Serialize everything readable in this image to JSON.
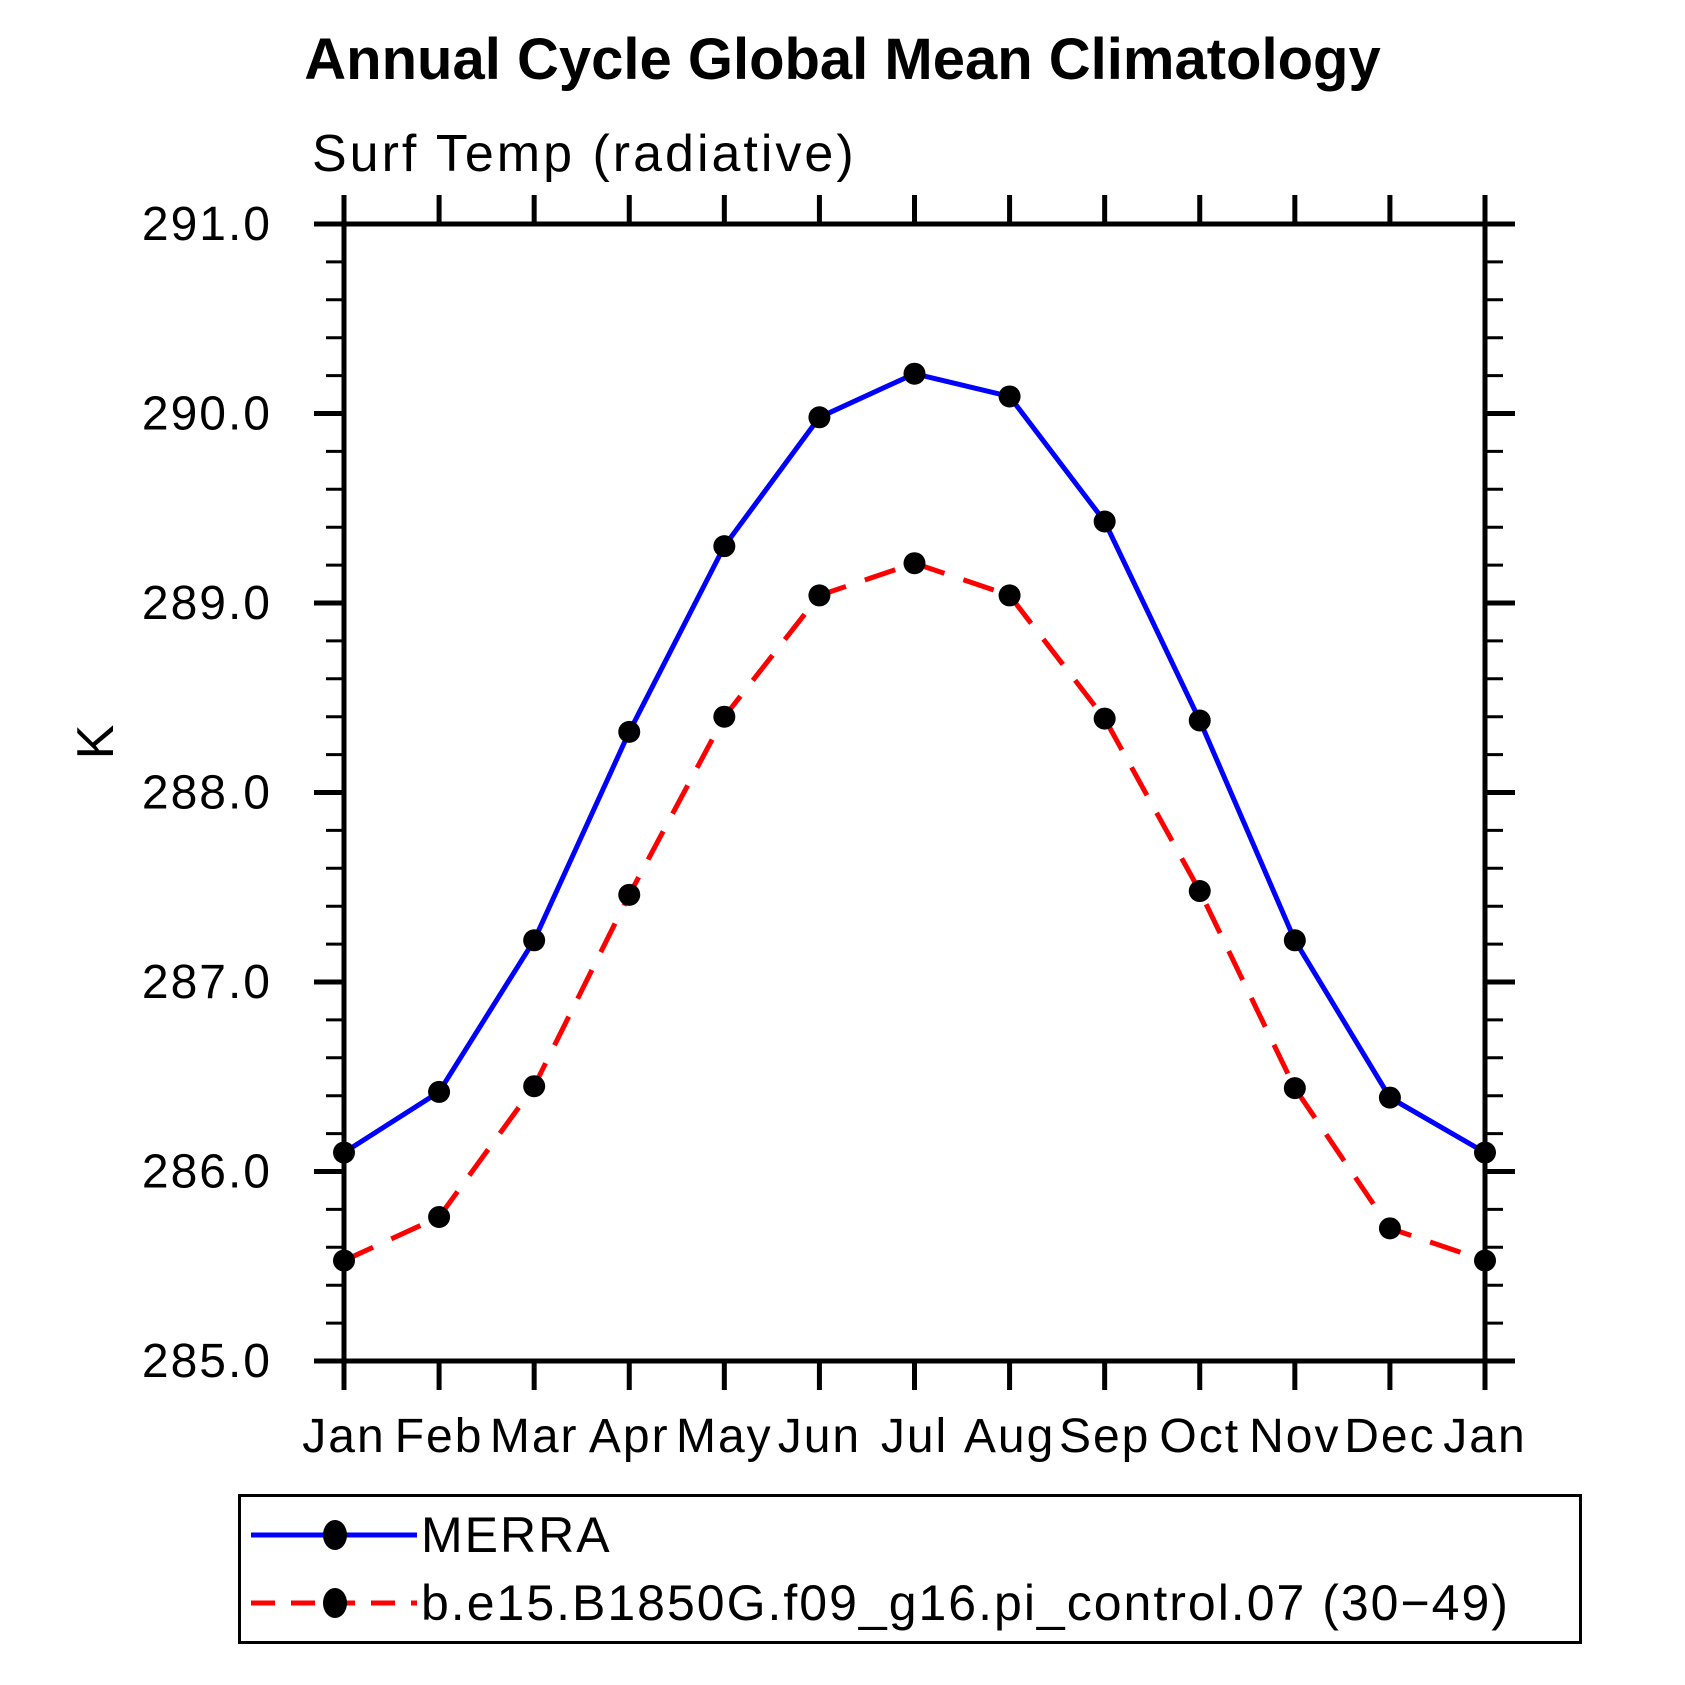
{
  "header": {
    "title": "Annual Cycle Global Mean Climatology",
    "subtitle": "Surf Temp (radiative)"
  },
  "axes": {
    "y_label": "K",
    "y_ticks": [
      "291.0",
      "290.0",
      "289.0",
      "288.0",
      "287.0",
      "286.0",
      "285.0"
    ],
    "x_ticks": [
      "Jan",
      "Feb",
      "Mar",
      "Apr",
      "May",
      "Jun",
      "Jul",
      "Aug",
      "Sep",
      "Oct",
      "Nov",
      "Dec",
      "Jan"
    ]
  },
  "colors": {
    "axis": "#000000",
    "marker": "#000000",
    "merra_line": "#0000ff",
    "model_line": "#ff0000"
  },
  "legend": {
    "items": [
      {
        "label": "MERRA",
        "color": "#0000ff",
        "style": "solid"
      },
      {
        "label": "b.e15.B1850G.f09_g16.pi_control.07 (30−49)",
        "color": "#ff0000",
        "style": "dashed"
      }
    ]
  },
  "chart_data": {
    "type": "line",
    "title": "Annual Cycle Global Mean Climatology",
    "subtitle": "Surf Temp (radiative)",
    "xlabel": "",
    "ylabel": "K",
    "x": [
      "Jan",
      "Feb",
      "Mar",
      "Apr",
      "May",
      "Jun",
      "Jul",
      "Aug",
      "Sep",
      "Oct",
      "Nov",
      "Dec",
      "Jan"
    ],
    "ylim": [
      285.0,
      291.0
    ],
    "y_major_step": 1.0,
    "y_minor_step": 0.2,
    "grid": false,
    "legend_position": "bottom",
    "series": [
      {
        "name": "MERRA",
        "color": "#0000ff",
        "line_style": "solid",
        "marker": "filled-circle",
        "marker_color": "#000000",
        "values": [
          286.1,
          286.42,
          287.22,
          288.32,
          289.3,
          289.98,
          290.21,
          290.09,
          289.43,
          288.38,
          287.22,
          286.39,
          286.1
        ]
      },
      {
        "name": "b.e15.B1850G.f09_g16.pi_control.07 (30−49)",
        "color": "#ff0000",
        "line_style": "dashed",
        "marker": "filled-circle",
        "marker_color": "#000000",
        "values": [
          285.53,
          285.76,
          286.45,
          287.46,
          288.4,
          289.04,
          289.21,
          289.04,
          288.39,
          287.48,
          286.44,
          285.7,
          285.53
        ]
      }
    ]
  }
}
